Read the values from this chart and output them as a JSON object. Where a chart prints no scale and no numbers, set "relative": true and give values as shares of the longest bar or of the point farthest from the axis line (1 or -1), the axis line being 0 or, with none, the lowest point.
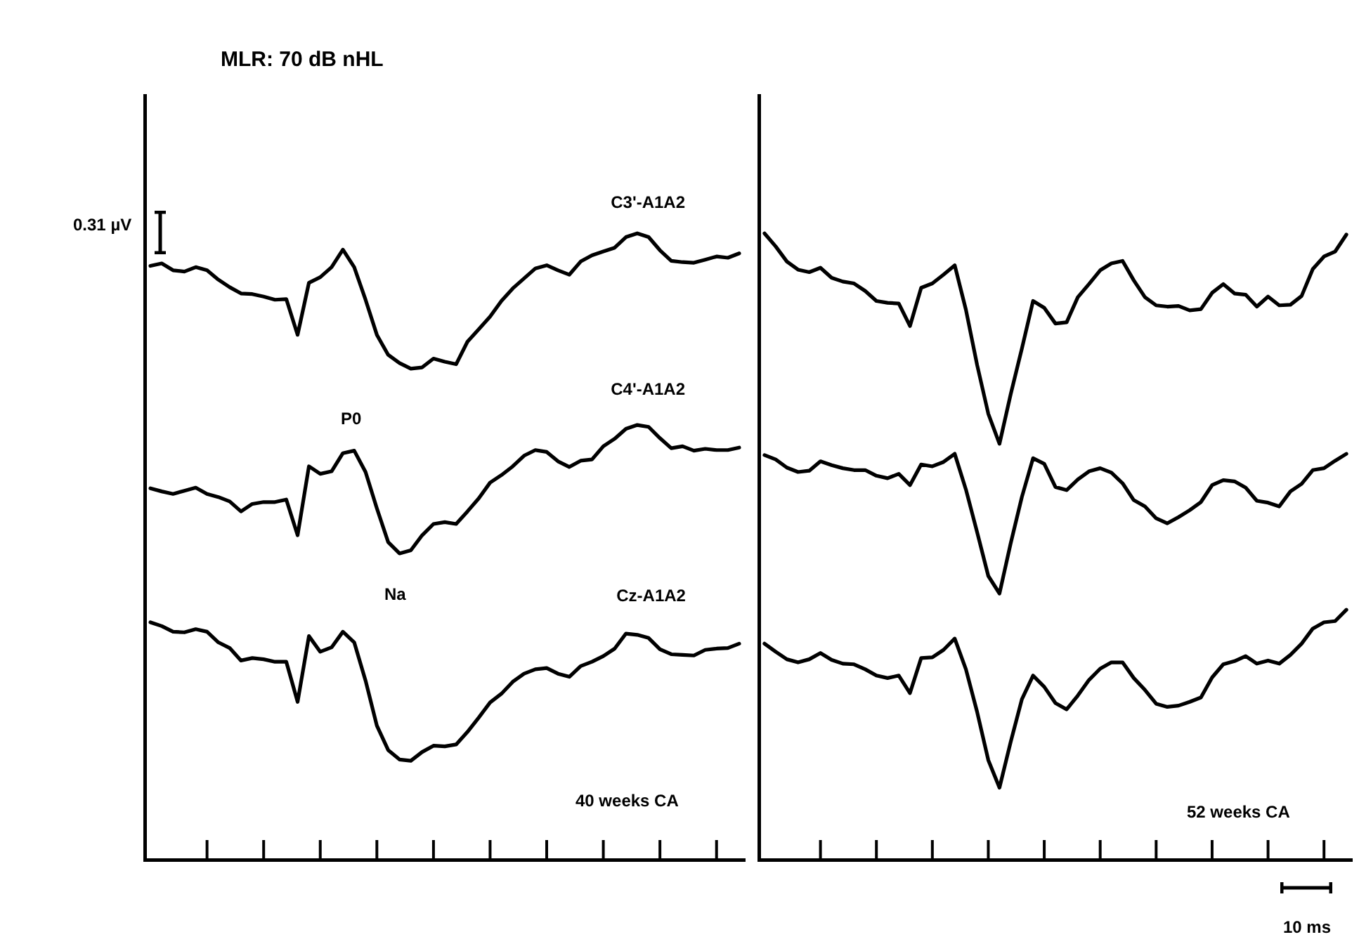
{
  "chart_data": [
    {
      "type": "line",
      "title": "MLR: 70 dB nHL",
      "relative": true,
      "categories": [
        null,
        null,
        null,
        null,
        null,
        null,
        null,
        null,
        null,
        null,
        null,
        null,
        null,
        null,
        null,
        null,
        null,
        null,
        null,
        null,
        null,
        null,
        null,
        null,
        null,
        null,
        null,
        null,
        null,
        null,
        null,
        null,
        null,
        null,
        null,
        null,
        null,
        null,
        null,
        null,
        null,
        null,
        null,
        null,
        null,
        null,
        null,
        null,
        null,
        null,
        null,
        null,
        null
      ],
      "series": [
        {
          "name": "C3'-A1A2",
          "color": "#000000",
          "values": [
            0.948,
            0.952,
            0.941,
            0.939,
            0.946,
            0.941,
            0.926,
            0.914,
            0.904,
            0.903,
            0.899,
            0.894,
            0.895,
            0.838,
            0.921,
            0.93,
            0.946,
            0.974,
            0.946,
            0.894,
            0.838,
            0.806,
            0.793,
            0.784,
            0.786,
            0.8,
            0.795,
            0.791,
            0.827,
            0.847,
            0.867,
            0.892,
            0.912,
            0.928,
            0.944,
            0.949,
            0.941,
            0.934,
            0.955,
            0.965,
            0.971,
            0.977,
            0.994,
            1.0,
            0.994,
            0.973,
            0.956,
            0.954,
            0.953,
            0.958,
            0.963,
            0.961,
            0.968
          ]
        },
        {
          "name": "C4'-A1A2",
          "color": "#000000",
          "values": [
            0.593,
            0.588,
            0.584,
            0.589,
            0.594,
            0.584,
            0.579,
            0.572,
            0.556,
            0.568,
            0.571,
            0.571,
            0.575,
            0.518,
            0.628,
            0.616,
            0.62,
            0.649,
            0.653,
            0.619,
            0.561,
            0.507,
            0.489,
            0.494,
            0.518,
            0.536,
            0.539,
            0.536,
            0.556,
            0.577,
            0.602,
            0.614,
            0.628,
            0.645,
            0.654,
            0.651,
            0.636,
            0.627,
            0.637,
            0.639,
            0.66,
            0.672,
            0.688,
            0.694,
            0.691,
            0.673,
            0.657,
            0.66,
            0.653,
            0.656,
            0.654,
            0.654,
            0.658
          ]
        },
        {
          "name": "Cz-A1A2",
          "color": "#000000",
          "values": [
            0.379,
            0.373,
            0.364,
            0.363,
            0.368,
            0.364,
            0.347,
            0.338,
            0.318,
            0.322,
            0.32,
            0.316,
            0.316,
            0.252,
            0.357,
            0.332,
            0.339,
            0.364,
            0.347,
            0.286,
            0.214,
            0.175,
            0.16,
            0.158,
            0.172,
            0.182,
            0.181,
            0.184,
            0.204,
            0.227,
            0.251,
            0.265,
            0.284,
            0.297,
            0.304,
            0.306,
            0.297,
            0.292,
            0.309,
            0.316,
            0.325,
            0.337,
            0.361,
            0.359,
            0.354,
            0.336,
            0.328,
            0.327,
            0.326,
            0.335,
            0.337,
            0.338,
            0.345
          ]
        }
      ],
      "annotations": [
        "P0",
        "Na",
        "40 weeks CA",
        "0.31 µV"
      ]
    },
    {
      "type": "line",
      "relative": true,
      "categories": [
        null,
        null,
        null,
        null,
        null,
        null,
        null,
        null,
        null,
        null,
        null,
        null,
        null,
        null,
        null,
        null,
        null,
        null,
        null,
        null,
        null,
        null,
        null,
        null,
        null,
        null,
        null,
        null,
        null,
        null,
        null,
        null,
        null,
        null,
        null,
        null,
        null,
        null,
        null,
        null,
        null,
        null,
        null,
        null,
        null,
        null,
        null,
        null,
        null,
        null,
        null,
        null,
        null
      ],
      "series": [
        {
          "color": "#000000",
          "values": [
            1.0,
            0.979,
            0.955,
            0.942,
            0.938,
            0.945,
            0.929,
            0.923,
            0.92,
            0.908,
            0.892,
            0.889,
            0.888,
            0.852,
            0.913,
            0.92,
            0.934,
            0.949,
            0.878,
            0.79,
            0.712,
            0.664,
            0.743,
            0.816,
            0.892,
            0.881,
            0.856,
            0.858,
            0.898,
            0.919,
            0.941,
            0.952,
            0.956,
            0.925,
            0.898,
            0.885,
            0.883,
            0.884,
            0.877,
            0.879,
            0.905,
            0.919,
            0.904,
            0.902,
            0.883,
            0.899,
            0.885,
            0.886,
            0.9,
            0.943,
            0.963,
            0.971,
            0.998
          ]
        },
        {
          "color": "#000000",
          "values": [
            0.646,
            0.639,
            0.626,
            0.619,
            0.621,
            0.636,
            0.63,
            0.625,
            0.622,
            0.622,
            0.613,
            0.609,
            0.616,
            0.598,
            0.631,
            0.628,
            0.635,
            0.648,
            0.591,
            0.523,
            0.453,
            0.425,
            0.505,
            0.579,
            0.641,
            0.632,
            0.595,
            0.59,
            0.607,
            0.62,
            0.625,
            0.618,
            0.601,
            0.574,
            0.564,
            0.545,
            0.537,
            0.547,
            0.558,
            0.571,
            0.598,
            0.606,
            0.604,
            0.594,
            0.573,
            0.57,
            0.564,
            0.588,
            0.6,
            0.622,
            0.625,
            0.637,
            0.648
          ]
        },
        {
          "color": "#000000",
          "values": [
            0.345,
            0.332,
            0.32,
            0.315,
            0.32,
            0.33,
            0.319,
            0.313,
            0.312,
            0.304,
            0.294,
            0.29,
            0.294,
            0.266,
            0.322,
            0.323,
            0.335,
            0.353,
            0.304,
            0.236,
            0.159,
            0.115,
            0.188,
            0.256,
            0.294,
            0.276,
            0.25,
            0.24,
            0.262,
            0.287,
            0.305,
            0.315,
            0.315,
            0.29,
            0.271,
            0.249,
            0.244,
            0.246,
            0.252,
            0.259,
            0.291,
            0.312,
            0.317,
            0.325,
            0.313,
            0.318,
            0.313,
            0.327,
            0.345,
            0.369,
            0.379,
            0.381,
            0.399
          ]
        }
      ],
      "annotations": [
        "52 weeks CA",
        "10 ms"
      ]
    }
  ]
}
